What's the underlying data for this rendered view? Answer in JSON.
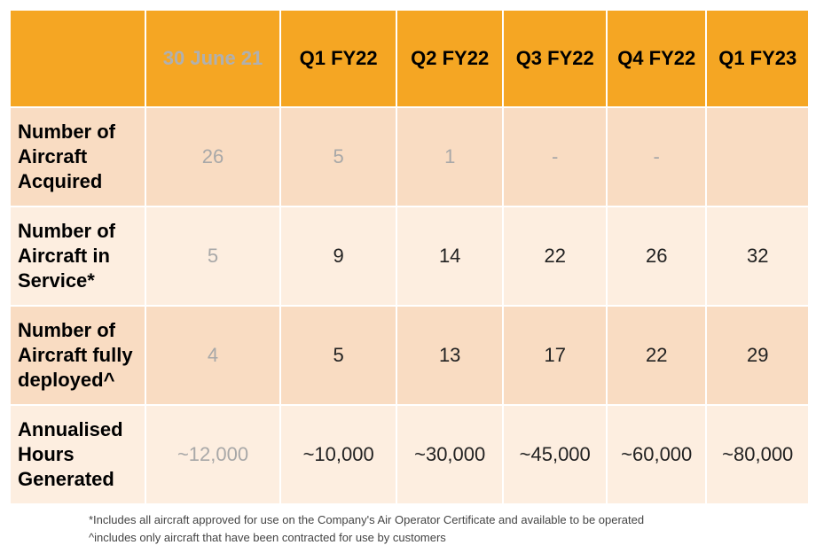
{
  "table": {
    "columns": [
      "",
      "30 June 21",
      "Q1 FY22",
      "Q2 FY22",
      "Q3 FY22",
      "Q4 FY22",
      "Q1 FY23"
    ],
    "rows": [
      {
        "label": "Number of Aircraft Acquired",
        "values": [
          "26",
          "5",
          "1",
          "-",
          "-",
          ""
        ]
      },
      {
        "label": "Number of Aircraft in Service*",
        "values": [
          "5",
          "9",
          "14",
          "22",
          "26",
          "32"
        ]
      },
      {
        "label": "Number of Aircraft fully deployed^",
        "values": [
          "4",
          "5",
          "13",
          "17",
          "22",
          "29"
        ]
      },
      {
        "label": "Annualised Hours Generated",
        "values": [
          "~12,000",
          "~10,000",
          "~30,000",
          "~45,000",
          "~60,000",
          "~80,000"
        ]
      }
    ]
  },
  "footnotes": {
    "asterisk": "*Includes all aircraft approved for use on the Company's Air Operator Certificate and available to be operated",
    "caret": "^includes only aircraft that have been contracted for use by customers"
  },
  "colors": {
    "header": "#f5a623",
    "band_dark": "#f9dcc2",
    "band_light": "#fdeee0",
    "muted_text": "#a8a8a8"
  }
}
